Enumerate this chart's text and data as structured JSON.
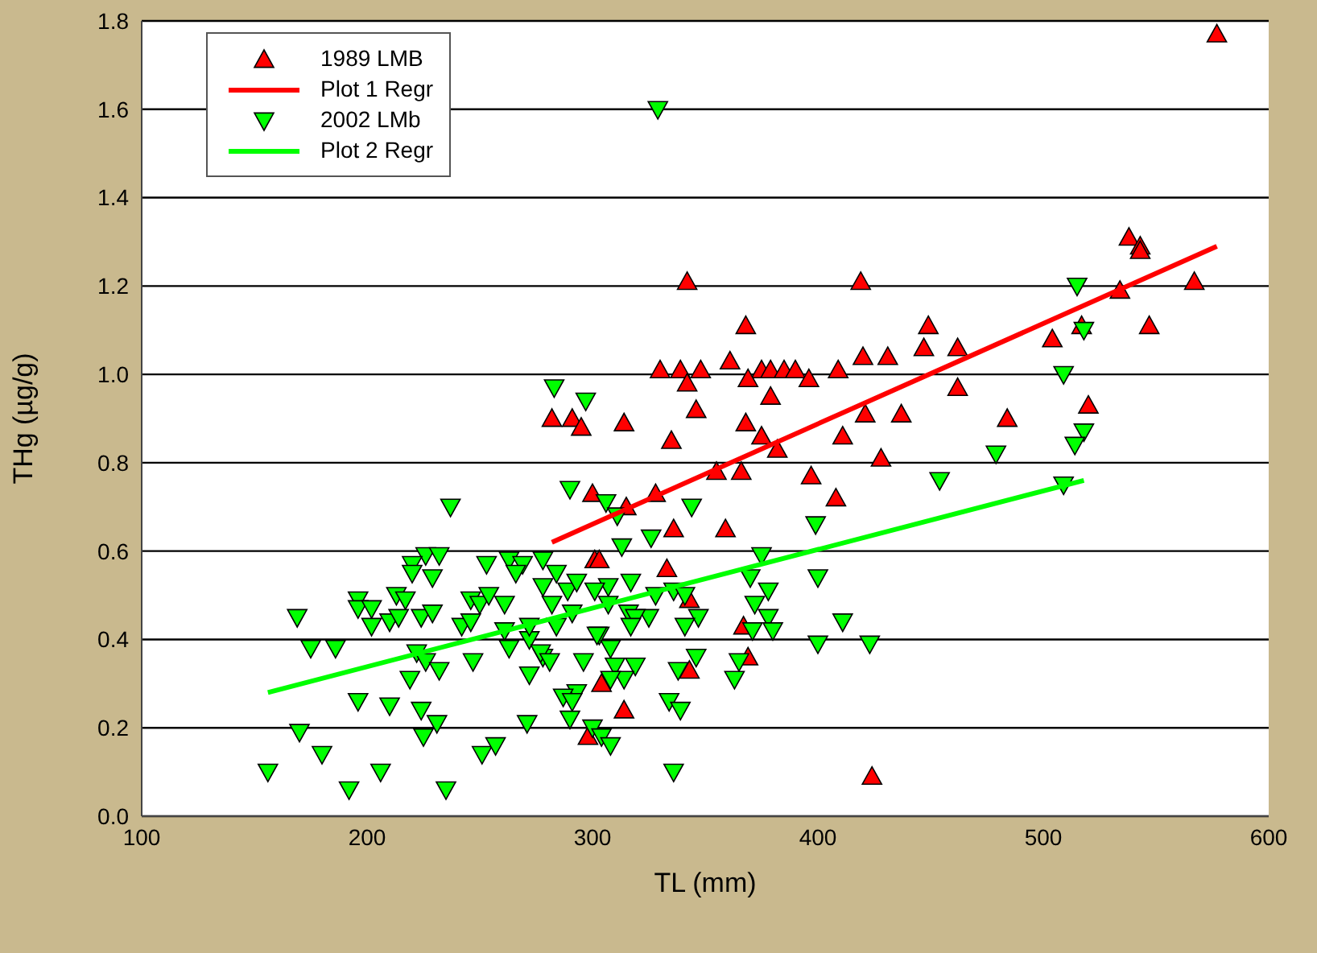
{
  "chart_data": {
    "type": "scatter",
    "xlabel": "TL (mm)",
    "ylabel": "THg (µg/g)",
    "xlim": [
      100,
      600
    ],
    "xticks": [
      100,
      200,
      300,
      400,
      500,
      600
    ],
    "ylim": [
      0,
      1.8
    ],
    "yticks": [
      {
        "value": 0,
        "label": "0.0"
      },
      {
        "value": 0.2,
        "label": "0.2"
      },
      {
        "value": 0.4,
        "label": "0.4"
      },
      {
        "value": 0.6,
        "label": "0.6"
      },
      {
        "value": 0.8,
        "label": "0.8"
      },
      {
        "value": 1,
        "label": "1.0"
      },
      {
        "value": 1.2,
        "label": "1.2"
      },
      {
        "value": 1.4,
        "label": "1.4"
      },
      {
        "value": 1.6,
        "label": "1.6"
      },
      {
        "value": 1.8,
        "label": "1.8"
      }
    ],
    "grid": "y",
    "legend": "top left",
    "series": [
      {
        "name": "1989 LMB",
        "marker": "triangle",
        "color": "#ff0000",
        "x": [
          577,
          538,
          543,
          543,
          534,
          567,
          419,
          517,
          547,
          504,
          449,
          368,
          447,
          462,
          420,
          431,
          375,
          379,
          385,
          390,
          369,
          396,
          409,
          462,
          379,
          520,
          368,
          421,
          437,
          484,
          375,
          411,
          382,
          428,
          366,
          397,
          408,
          342,
          361,
          330,
          339,
          348,
          342,
          346,
          282,
          291,
          295,
          314,
          335,
          355,
          300,
          328,
          315,
          336,
          359,
          301,
          303,
          333,
          343,
          367,
          369,
          343,
          304,
          314,
          298,
          424
        ],
        "values": [
          1.77,
          1.31,
          1.29,
          1.28,
          1.19,
          1.21,
          1.21,
          1.11,
          1.11,
          1.08,
          1.11,
          1.11,
          1.06,
          1.06,
          1.04,
          1.04,
          1.01,
          1.01,
          1.01,
          1.01,
          0.99,
          0.99,
          1.01,
          0.97,
          0.95,
          0.93,
          0.89,
          0.91,
          0.91,
          0.9,
          0.86,
          0.86,
          0.83,
          0.81,
          0.78,
          0.77,
          0.72,
          1.21,
          1.03,
          1.01,
          1.01,
          1.01,
          0.98,
          0.92,
          0.9,
          0.9,
          0.88,
          0.89,
          0.85,
          0.78,
          0.73,
          0.73,
          0.7,
          0.65,
          0.65,
          0.58,
          0.58,
          0.56,
          0.49,
          0.43,
          0.36,
          0.33,
          0.3,
          0.24,
          0.18,
          0.09
        ]
      },
      {
        "name": "Plot 1 Regr",
        "type": "line",
        "marker": "none",
        "color": "#ff0000",
        "x": [
          282,
          577
        ],
        "values": [
          0.62,
          1.29
        ]
      },
      {
        "name": "2002 LMb",
        "marker": "triangle_down",
        "color": "#00ff00",
        "x": [
          329,
          237,
          226,
          232,
          220,
          220,
          229,
          253,
          263,
          269,
          278,
          266,
          278,
          196,
          196,
          202,
          213,
          217,
          202,
          210,
          214,
          224,
          229,
          169,
          246,
          250,
          254,
          261,
          242,
          246,
          261,
          272,
          175,
          186,
          222,
          226,
          232,
          219,
          247,
          263,
          278,
          272,
          196,
          210,
          224,
          231,
          170,
          225,
          271,
          180,
          206,
          156,
          192,
          235,
          251,
          257,
          283,
          297,
          290,
          306,
          311,
          344,
          326,
          313,
          284,
          289,
          293,
          307,
          317,
          301,
          328,
          336,
          341,
          370,
          282,
          307,
          316,
          347,
          325,
          319,
          291,
          284,
          317,
          341,
          272,
          303,
          371,
          375,
          399,
          400,
          372,
          378,
          378,
          380,
          302,
          308,
          277,
          281,
          296,
          310,
          319,
          314,
          308,
          346,
          338,
          365,
          363,
          293,
          287,
          291,
          290,
          334,
          339,
          300,
          304,
          308,
          336,
          515,
          518,
          509,
          479,
          454,
          518,
          514,
          509,
          400,
          423,
          411
        ],
        "values": [
          1.6,
          0.7,
          0.59,
          0.59,
          0.57,
          0.55,
          0.54,
          0.57,
          0.58,
          0.57,
          0.58,
          0.55,
          0.52,
          0.49,
          0.47,
          0.47,
          0.5,
          0.49,
          0.43,
          0.44,
          0.45,
          0.45,
          0.46,
          0.45,
          0.49,
          0.48,
          0.5,
          0.48,
          0.43,
          0.44,
          0.42,
          0.4,
          0.38,
          0.38,
          0.37,
          0.35,
          0.33,
          0.31,
          0.35,
          0.38,
          0.36,
          0.32,
          0.26,
          0.25,
          0.24,
          0.21,
          0.19,
          0.18,
          0.21,
          0.14,
          0.1,
          0.1,
          0.06,
          0.06,
          0.14,
          0.16,
          0.97,
          0.94,
          0.74,
          0.71,
          0.68,
          0.7,
          0.63,
          0.61,
          0.55,
          0.51,
          0.53,
          0.52,
          0.53,
          0.51,
          0.5,
          0.51,
          0.5,
          0.54,
          0.48,
          0.48,
          0.46,
          0.45,
          0.45,
          0.45,
          0.46,
          0.43,
          0.43,
          0.43,
          0.43,
          0.41,
          0.42,
          0.59,
          0.66,
          0.54,
          0.48,
          0.51,
          0.45,
          0.42,
          0.41,
          0.38,
          0.37,
          0.35,
          0.35,
          0.34,
          0.34,
          0.31,
          0.31,
          0.36,
          0.33,
          0.35,
          0.31,
          0.28,
          0.27,
          0.26,
          0.22,
          0.26,
          0.24,
          0.2,
          0.18,
          0.16,
          0.1,
          1.2,
          1.1,
          1.0,
          0.82,
          0.76,
          0.87,
          0.84,
          0.75,
          0.39,
          0.39,
          0.44
        ]
      },
      {
        "name": "Plot 2 Regr",
        "type": "line",
        "marker": "none",
        "color": "#00ff00",
        "x": [
          156,
          518
        ],
        "values": [
          0.28,
          0.76
        ]
      }
    ]
  }
}
